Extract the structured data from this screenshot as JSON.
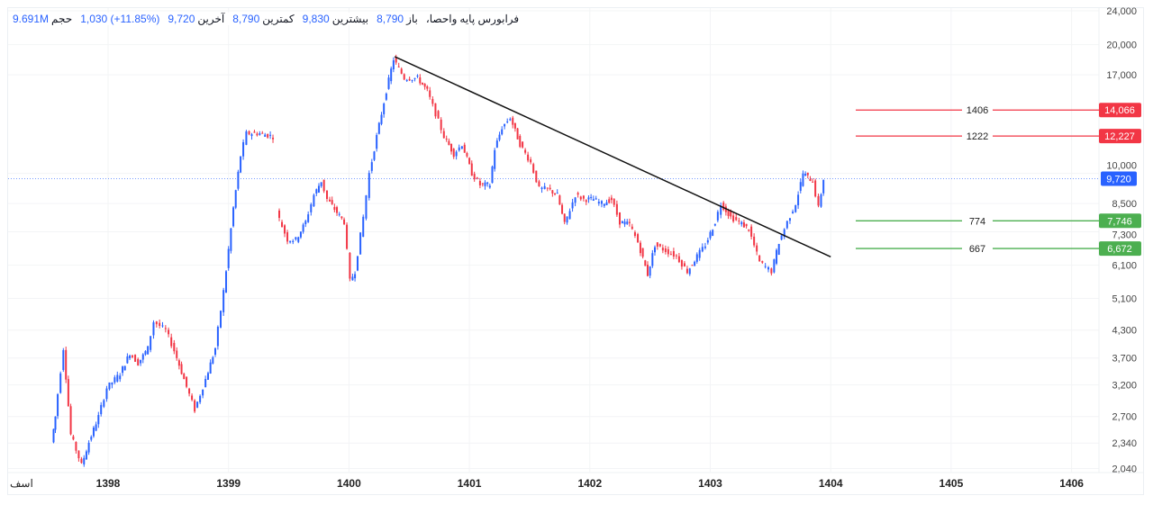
{
  "header": {
    "symbol": "فرابورس پایه",
    "name": "واحصا،",
    "open_label": "باز",
    "open": "8,790",
    "high_label": "بیشترین",
    "high": "9,830",
    "low_label": "کمترین",
    "low": "8,790",
    "last_label": "آخرین",
    "last": "9,720",
    "change": "1,030 (+11.85%)",
    "volume_label": "حجم",
    "volume": "9.691M"
  },
  "colors": {
    "up": "#2962ff",
    "down": "#f23645",
    "resistance": "#f23645",
    "support": "#4caf50",
    "last_price": "#2962ff"
  },
  "chart_data": {
    "type": "candlestick",
    "y_scale": "log",
    "ylim": [
      2040,
      24000
    ],
    "y_ticks": [
      "24,000",
      "20,000",
      "17,000",
      "10,000",
      "8,500",
      "7,300",
      "6,100",
      "5,100",
      "4,300",
      "3,700",
      "3,200",
      "2,700",
      "2,340",
      "2,040"
    ],
    "y_tick_values": [
      24000,
      20000,
      17000,
      10000,
      8500,
      7300,
      6100,
      5100,
      4300,
      3700,
      3200,
      2700,
      2340,
      2040
    ],
    "x_ticks": [
      "1398",
      "1399",
      "1400",
      "1401",
      "1402",
      "1403",
      "1404",
      "1405",
      "1406"
    ],
    "x_left_label": "اسف",
    "grid": true,
    "close_series": [
      [
        1397.54,
        2350
      ],
      [
        1397.57,
        2700
      ],
      [
        1397.64,
        3900
      ],
      [
        1397.7,
        2450
      ],
      [
        1397.79,
        2080
      ],
      [
        1397.85,
        2350
      ],
      [
        1397.93,
        2700
      ],
      [
        1398.0,
        3150
      ],
      [
        1398.11,
        3400
      ],
      [
        1398.19,
        3800
      ],
      [
        1398.26,
        3600
      ],
      [
        1398.34,
        3900
      ],
      [
        1398.39,
        4500
      ],
      [
        1398.49,
        4300
      ],
      [
        1398.56,
        3850
      ],
      [
        1398.64,
        3300
      ],
      [
        1398.73,
        2800
      ],
      [
        1398.82,
        3300
      ],
      [
        1398.9,
        3900
      ],
      [
        1398.97,
        5300
      ],
      [
        1399.05,
        8300
      ],
      [
        1399.11,
        11000
      ],
      [
        1399.16,
        12400
      ],
      [
        1399.27,
        12400
      ],
      [
        1399.38,
        12200
      ],
      null,
      [
        1399.41,
        8100
      ],
      [
        1399.5,
        7000
      ],
      [
        1399.57,
        7000
      ],
      [
        1399.65,
        7700
      ],
      [
        1399.72,
        8900
      ],
      [
        1399.78,
        9600
      ],
      [
        1399.83,
        8700
      ],
      [
        1399.91,
        8100
      ],
      [
        1399.97,
        7700
      ],
      [
        1400.02,
        5600
      ],
      [
        1400.06,
        5900
      ],
      [
        1400.13,
        7900
      ],
      [
        1400.18,
        10000
      ],
      [
        1400.24,
        12200
      ],
      [
        1400.32,
        15600
      ],
      [
        1400.38,
        18500
      ],
      [
        1400.47,
        16700
      ],
      [
        1400.58,
        16700
      ],
      [
        1400.66,
        15600
      ],
      [
        1400.73,
        13800
      ],
      [
        1400.8,
        12200
      ],
      [
        1400.88,
        11100
      ],
      [
        1400.95,
        11700
      ],
      [
        1401.03,
        10000
      ],
      [
        1401.1,
        9400
      ],
      [
        1401.18,
        9400
      ],
      [
        1401.22,
        11400
      ],
      [
        1401.28,
        12800
      ],
      [
        1401.35,
        13500
      ],
      [
        1401.43,
        11700
      ],
      [
        1401.52,
        10600
      ],
      [
        1401.59,
        9200
      ],
      [
        1401.66,
        9200
      ],
      [
        1401.74,
        8900
      ],
      [
        1401.8,
        7600
      ],
      [
        1401.89,
        8900
      ],
      [
        1401.96,
        8700
      ],
      [
        1402.04,
        8700
      ],
      [
        1402.11,
        8500
      ],
      [
        1402.19,
        8700
      ],
      [
        1402.26,
        7700
      ],
      [
        1402.34,
        7600
      ],
      [
        1402.41,
        6900
      ],
      [
        1402.49,
        5800
      ],
      [
        1402.55,
        6800
      ],
      [
        1402.64,
        6600
      ],
      [
        1402.73,
        6400
      ],
      [
        1402.82,
        5900
      ],
      [
        1402.9,
        6400
      ],
      [
        1402.97,
        6800
      ],
      [
        1403.05,
        7700
      ],
      [
        1403.1,
        8500
      ],
      [
        1403.18,
        7900
      ],
      [
        1403.25,
        7700
      ],
      [
        1403.33,
        7400
      ],
      [
        1403.42,
        6200
      ],
      [
        1403.52,
        5900
      ],
      [
        1403.58,
        6900
      ],
      [
        1403.65,
        7700
      ],
      [
        1403.72,
        8500
      ],
      [
        1403.78,
        10000
      ],
      [
        1403.86,
        9600
      ],
      [
        1403.91,
        8300
      ],
      [
        1403.95,
        9720
      ]
    ],
    "trendline": [
      [
        1400.38,
        18750
      ],
      [
        1404.0,
        6380
      ]
    ],
    "levels": [
      {
        "label": "1406",
        "value": 14066,
        "price": "14,066",
        "kind": "resistance"
      },
      {
        "label": "1222",
        "value": 12227,
        "price": "12,227",
        "kind": "resistance"
      },
      {
        "label": "774",
        "value": 7746,
        "price": "7,746",
        "kind": "support"
      },
      {
        "label": "667",
        "value": 6672,
        "price": "6,672",
        "kind": "support"
      }
    ],
    "last_price": {
      "value": 9720,
      "price": "9,720"
    }
  }
}
